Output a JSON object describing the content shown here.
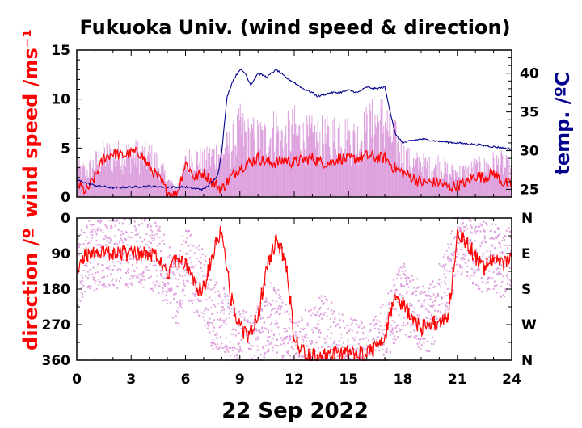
{
  "chart_data": [
    {
      "type": "line",
      "title": "Fukuoka Univ. (wind speed & direction)",
      "xlabel": "22 Sep 2022",
      "ylabel": "wind speed /ms⁻¹",
      "ylabel_right": "temp. /ºC",
      "xlim": [
        0,
        24
      ],
      "ylim": [
        0,
        15
      ],
      "ylim_right": [
        24,
        43
      ],
      "x_ticks": [
        "0",
        "3",
        "6",
        "9",
        "12",
        "15",
        "18",
        "21",
        "24"
      ],
      "y_ticks": [
        "0",
        "5",
        "10",
        "15"
      ],
      "y_ticks_right": [
        "25",
        "30",
        "35",
        "40"
      ],
      "colors": {
        "gust": "#dda0dd",
        "mean": "#ff0000",
        "temp": "#00008b"
      },
      "series": [
        {
          "name": "",
          "color": "#dda0dd",
          "style": "dense instantaneous (gust band)",
          "x": [
            0,
            0.5,
            1,
            1.5,
            2,
            2.5,
            3,
            3.5,
            4,
            4.5,
            5,
            5.5,
            6,
            6.5,
            7,
            7.5,
            8,
            8.5,
            9,
            9.5,
            10,
            10.5,
            11,
            11.5,
            12,
            12.5,
            13,
            13.5,
            14,
            14.5,
            15,
            15.5,
            16,
            16.5,
            17,
            17.5,
            18,
            18.5,
            19,
            19.5,
            20,
            20.5,
            21,
            21.5,
            22,
            22.5,
            23,
            23.5,
            24
          ],
          "values": [
            3.5,
            3,
            4,
            5,
            5,
            5,
            5,
            5,
            4.8,
            4,
            2,
            1,
            4,
            5,
            4,
            5,
            5.5,
            6,
            8,
            7,
            7,
            7,
            8,
            7,
            8,
            7,
            7,
            7,
            7,
            8,
            7,
            7,
            8,
            9,
            9,
            7,
            5,
            4,
            4,
            3.5,
            4,
            3,
            3,
            3,
            3.5,
            3.5,
            4,
            4,
            3
          ]
        },
        {
          "name": "",
          "color": "#ff0000",
          "style": "mean wind speed",
          "x": [
            0,
            0.5,
            1,
            1.5,
            2,
            2.5,
            3,
            3.5,
            4,
            4.5,
            5,
            5.5,
            6,
            6.5,
            7,
            7.5,
            8,
            8.5,
            9,
            9.5,
            10,
            10.5,
            11,
            11.5,
            12,
            12.5,
            13,
            13.5,
            14,
            14.5,
            15,
            15.5,
            16,
            16.5,
            17,
            17.5,
            18,
            18.5,
            19,
            19.5,
            20,
            20.5,
            21,
            21.5,
            22,
            22.5,
            23,
            23.5,
            24
          ],
          "values": [
            1.5,
            0.5,
            2,
            4,
            4.5,
            4.2,
            4.5,
            4.5,
            3,
            2,
            0.5,
            0.2,
            3.5,
            2,
            2.5,
            1.5,
            0.8,
            2,
            3,
            3.5,
            4,
            3.5,
            3.5,
            3.8,
            3.5,
            3.8,
            4,
            3.5,
            3.5,
            4,
            3.8,
            4,
            4.2,
            4,
            4,
            3,
            2.5,
            2,
            1.5,
            1.5,
            1.5,
            1,
            1.2,
            1.5,
            2.2,
            2,
            2.5,
            1.5,
            1.2
          ]
        },
        {
          "name": "",
          "color": "#00008b",
          "axis": "right",
          "style": "temperature",
          "x": [
            0,
            1,
            2,
            3,
            4,
            5,
            6,
            6.5,
            7,
            7.5,
            7.8,
            8,
            8.3,
            8.6,
            9,
            9.3,
            9.6,
            10,
            10.5,
            11,
            11.5,
            12,
            12.5,
            13,
            13.3,
            13.6,
            14,
            14.5,
            15,
            15.5,
            16,
            16.5,
            17,
            17.3,
            17.6,
            18,
            18.5,
            19,
            20,
            21,
            22,
            23,
            24
          ],
          "values": [
            26.2,
            25.5,
            25.2,
            25.3,
            25.4,
            25.3,
            25.3,
            25.1,
            25.0,
            26.0,
            27.0,
            30,
            37,
            39,
            40.5,
            40,
            38.5,
            40,
            39.5,
            40.5,
            39.5,
            38.8,
            38,
            37.5,
            37,
            37.2,
            37.5,
            37.5,
            37.8,
            37.5,
            38.2,
            38,
            38.2,
            35,
            32,
            31,
            31.3,
            31.5,
            31.2,
            31,
            30.8,
            30.5,
            30.2
          ]
        }
      ]
    },
    {
      "type": "scatter",
      "xlabel": "22 Sep 2022",
      "ylabel": "direction /º",
      "xlim": [
        0,
        24
      ],
      "ylim": [
        0,
        360
      ],
      "y_inverted": true,
      "x_ticks": [
        "0",
        "3",
        "6",
        "9",
        "12",
        "15",
        "18",
        "21",
        "24"
      ],
      "y_ticks": [
        "0",
        "90",
        "180",
        "270",
        "360"
      ],
      "y_ticks_right": [
        "N",
        "E",
        "S",
        "W",
        "N"
      ],
      "series": [
        {
          "name": "",
          "color": "#dda0dd",
          "style": "instantaneous direction (dots)",
          "x": [
            0,
            0.5,
            1,
            1.5,
            2,
            2.5,
            3,
            3.5,
            4,
            4.5,
            5,
            5.5,
            6,
            6.5,
            7,
            7.5,
            8,
            8.5,
            9,
            9.5,
            10,
            10.5,
            11,
            11.5,
            12,
            12.5,
            13,
            13.5,
            14,
            14.5,
            15,
            15.5,
            16,
            16.5,
            17,
            17.5,
            18,
            18.5,
            19,
            19.5,
            20,
            20.5,
            21,
            21.5,
            22,
            22.5,
            23,
            23.5,
            24
          ],
          "values": [
            150,
            90,
            100,
            90,
            90,
            90,
            90,
            90,
            90,
            100,
            150,
            200,
            100,
            150,
            170,
            250,
            250,
            300,
            320,
            330,
            300,
            250,
            250,
            300,
            350,
            320,
            320,
            280,
            300,
            320,
            340,
            350,
            350,
            330,
            300,
            240,
            200,
            220,
            250,
            260,
            200,
            150,
            60,
            60,
            90,
            100,
            90,
            120,
            100
          ]
        },
        {
          "name": "",
          "color": "#ff0000",
          "style": "mean direction",
          "x": [
            0,
            0.5,
            1,
            1.5,
            2,
            2.5,
            3,
            3.5,
            4,
            4.5,
            5,
            5.5,
            6,
            6.5,
            7,
            7.5,
            8,
            8.5,
            9,
            9.5,
            10,
            10.5,
            11,
            11.5,
            12,
            12.5,
            13,
            13.5,
            14,
            14.5,
            15,
            15.5,
            16,
            16.5,
            17,
            17.5,
            18,
            18.5,
            19,
            19.5,
            20,
            20.5,
            21,
            21.5,
            22,
            22.5,
            23,
            23.5,
            24
          ],
          "values": [
            130,
            90,
            80,
            90,
            90,
            90,
            90,
            90,
            90,
            100,
            150,
            100,
            120,
            170,
            180,
            90,
            30,
            200,
            280,
            300,
            250,
            120,
            60,
            100,
            300,
            340,
            350,
            350,
            345,
            340,
            345,
            345,
            340,
            330,
            310,
            200,
            220,
            250,
            280,
            270,
            260,
            250,
            40,
            60,
            100,
            130,
            100,
            120,
            100
          ]
        }
      ]
    }
  ]
}
